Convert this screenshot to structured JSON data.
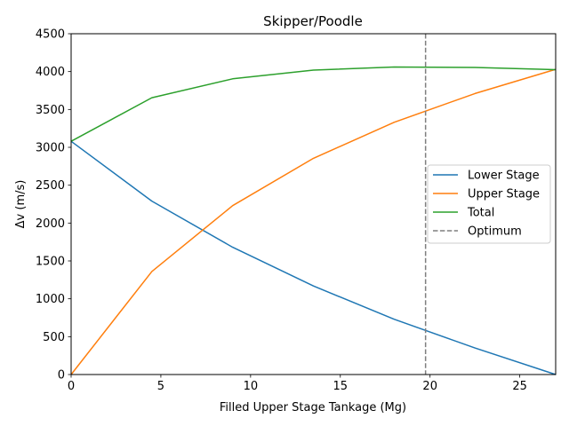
{
  "chart_data": {
    "type": "line",
    "title": "Skipper/Poodle",
    "xlabel": "Filled Upper Stage Tankage (Mg)",
    "ylabel": "Δv (m/s)",
    "xlim": [
      0,
      27
    ],
    "ylim": [
      0,
      4500
    ],
    "xticks": [
      0,
      5,
      10,
      15,
      20,
      25
    ],
    "yticks": [
      0,
      500,
      1000,
      1500,
      2000,
      2500,
      3000,
      3500,
      4000,
      4500
    ],
    "grid": false,
    "legend_position": "center-right",
    "series": [
      {
        "name": "Lower Stage",
        "color": "#1f77b4",
        "style": "solid",
        "x": [
          0,
          4.5,
          9,
          13.5,
          18,
          22.5,
          27
        ],
        "y": [
          3080,
          2290,
          1680,
          1170,
          730,
          350,
          0
        ]
      },
      {
        "name": "Upper Stage",
        "color": "#ff7f0e",
        "style": "solid",
        "x": [
          0,
          4.5,
          9,
          13.5,
          18,
          22.5,
          27
        ],
        "y": [
          0,
          1360,
          2230,
          2855,
          3330,
          3710,
          4030
        ]
      },
      {
        "name": "Total",
        "color": "#2ca02c",
        "style": "solid",
        "x": [
          0,
          4.5,
          9,
          13.5,
          18,
          22.5,
          27
        ],
        "y": [
          3080,
          3655,
          3905,
          4020,
          4060,
          4055,
          4025
        ]
      }
    ],
    "vlines": [
      {
        "name": "Optimum",
        "color": "#7f7f7f",
        "style": "dashed",
        "x": 19.75
      }
    ]
  }
}
